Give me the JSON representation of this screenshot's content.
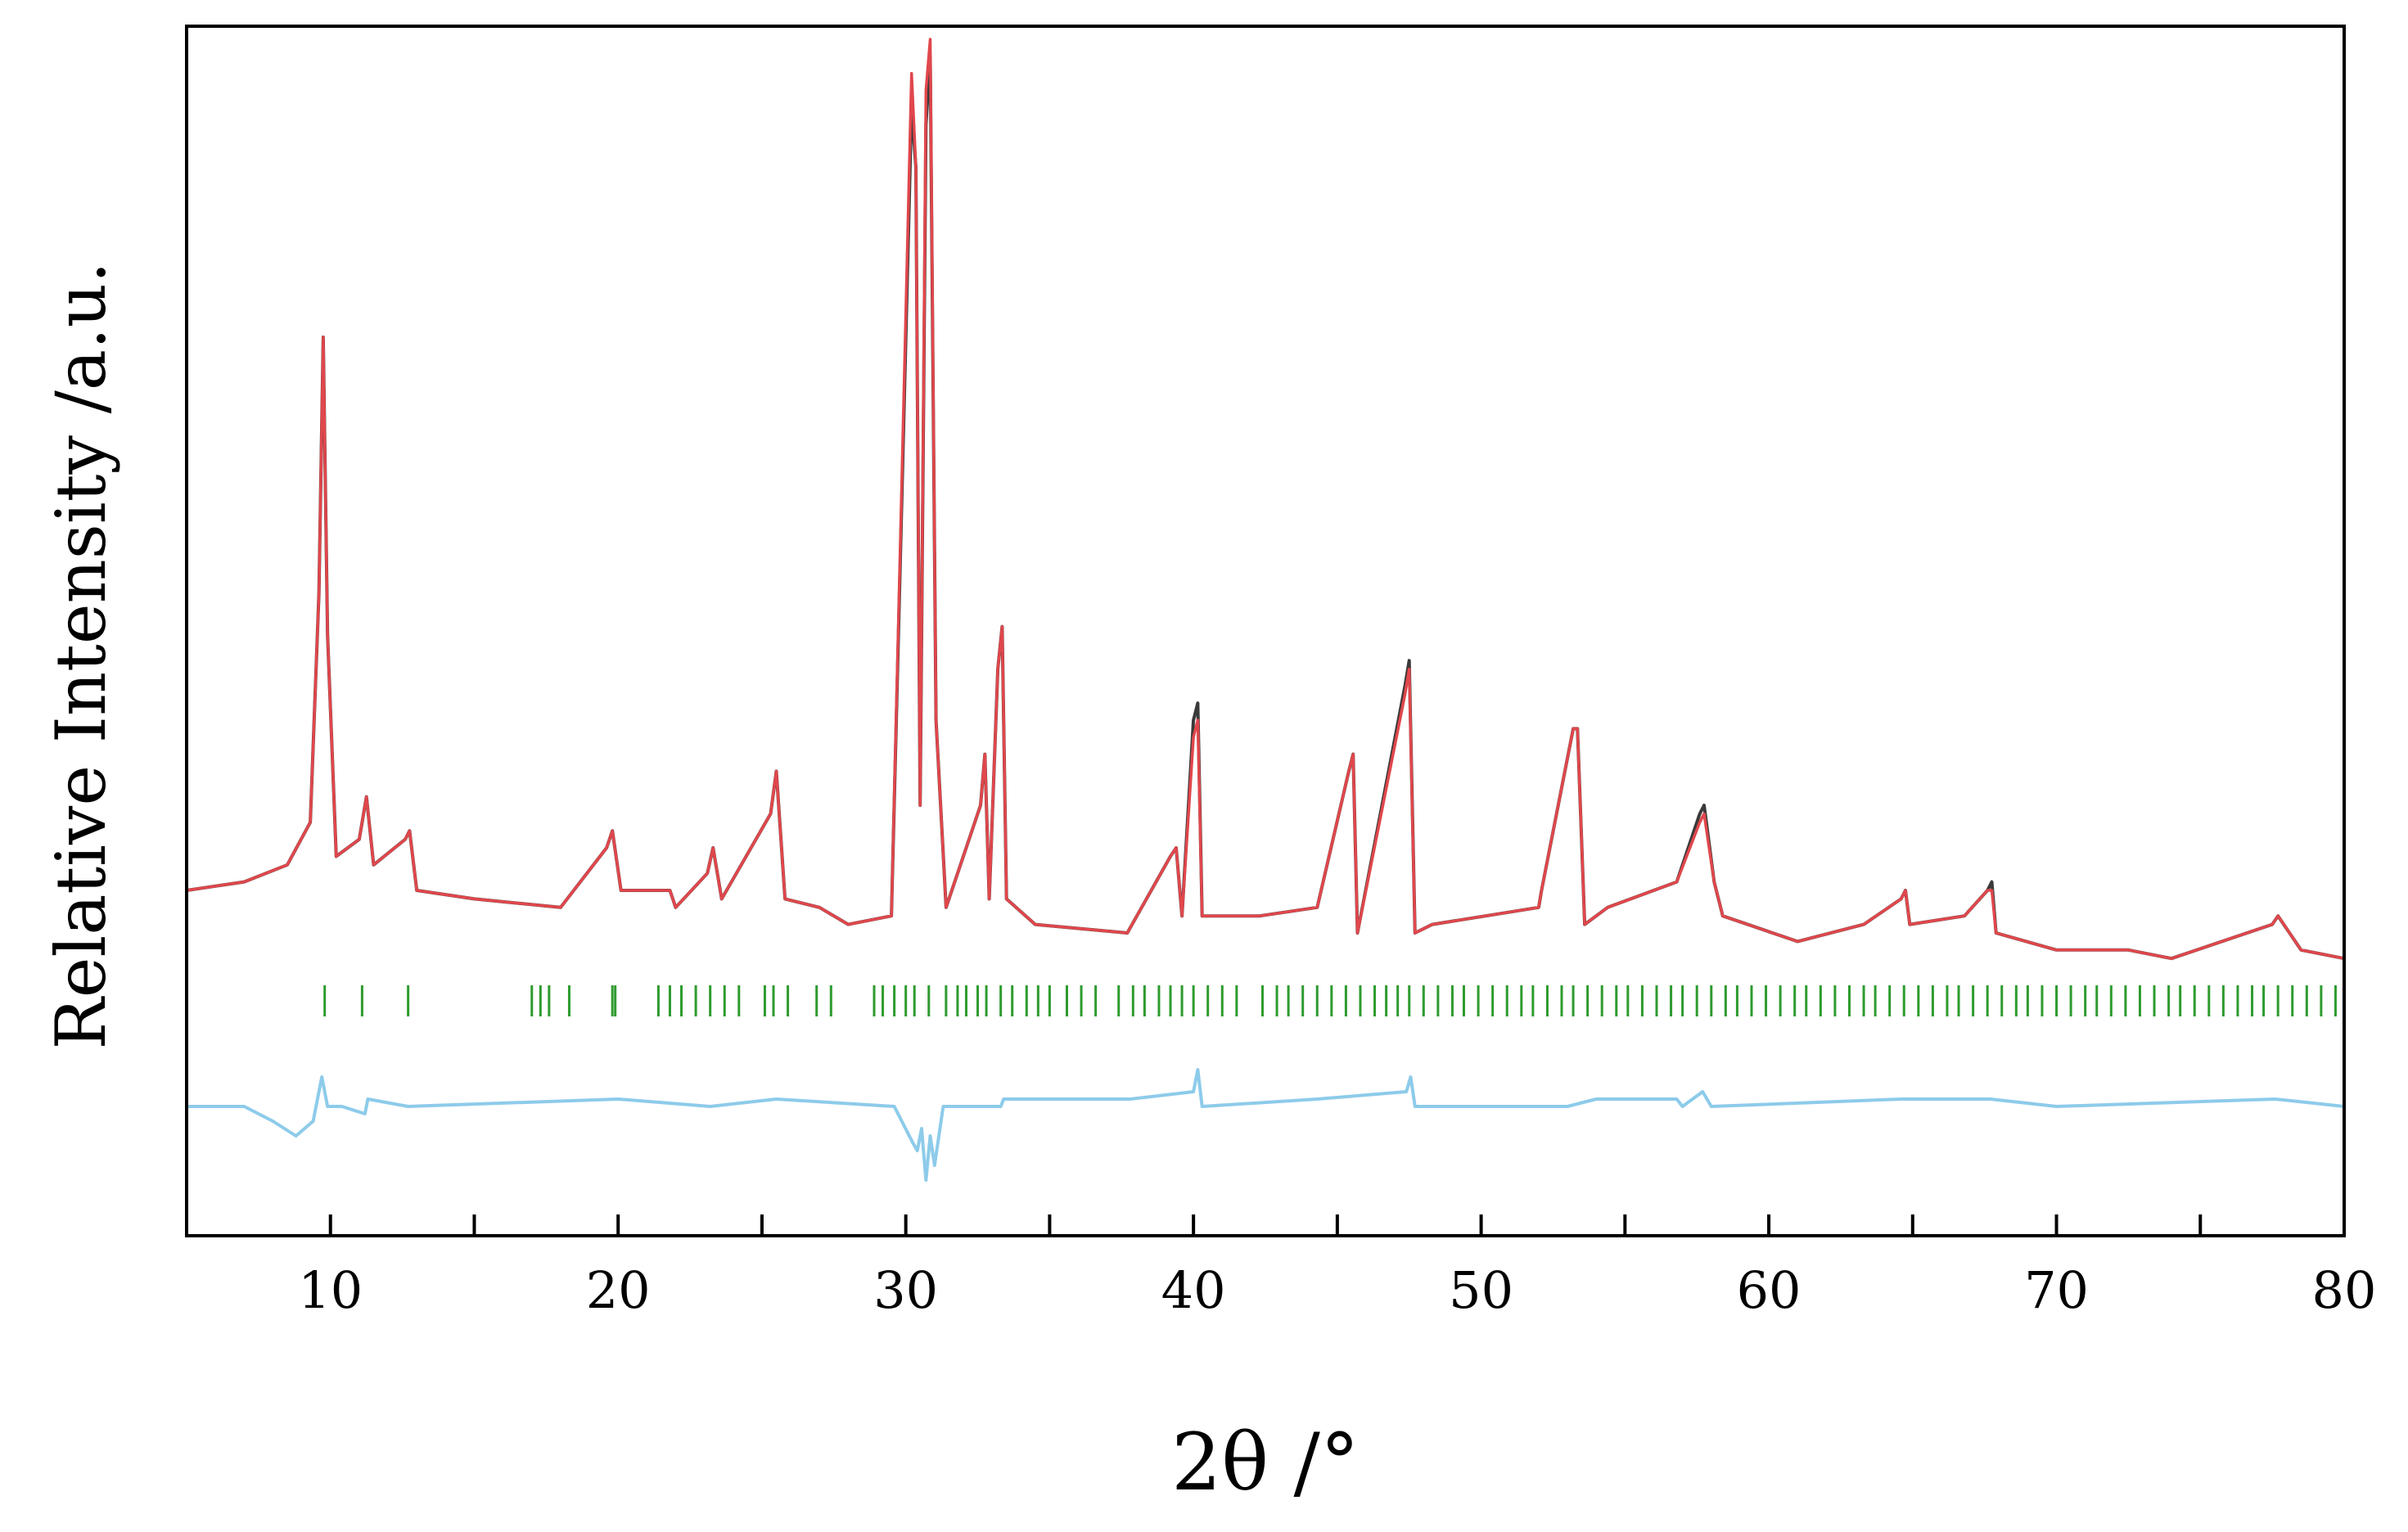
{
  "chart_data": {
    "type": "line",
    "title": "",
    "xlabel": "2θ /°",
    "ylabel": "Relative Intensity /a.u.",
    "xlim": [
      5,
      80
    ],
    "x_ticks": [
      10,
      20,
      30,
      40,
      50,
      60,
      70,
      80
    ],
    "x_tick_labels": [
      "10",
      "20",
      "30",
      "40",
      "50",
      "60",
      "70",
      "80"
    ],
    "y_ticks_shown": false,
    "grid": false,
    "legend": "none",
    "y_scale_note": "Relative intensity, baseline normalized to 0 (pattern), peak max ≈ 1.0",
    "colors": {
      "observed": "#3a3a3a",
      "calculated": "#e0474c",
      "reflection_ticks": "#2e9b2e",
      "difference": "#8dcbea",
      "axis": "#000000"
    },
    "series": [
      {
        "role": "observed",
        "x": [
          5,
          7,
          8.5,
          9.3,
          9.6,
          9.75,
          9.9,
          10.2,
          11.0,
          11.25,
          11.5,
          12.6,
          12.75,
          13.0,
          15,
          18,
          19.6,
          19.8,
          20.1,
          21.8,
          22.0,
          23.1,
          23.3,
          23.6,
          25.3,
          25.5,
          25.8,
          27.0,
          28,
          29.5,
          30.2,
          30.35,
          30.5,
          30.7,
          30.85,
          31.05,
          31.4,
          32.6,
          32.75,
          32.9,
          33.2,
          33.35,
          33.5,
          34.5,
          37.7,
          39.2,
          39.4,
          39.6,
          40.0,
          40.15,
          40.3,
          42.3,
          44.3,
          45.4,
          45.55,
          45.7,
          47.35,
          47.5,
          47.7,
          48.3,
          52.0,
          52.1,
          53.2,
          53.35,
          53.6,
          54.4,
          56.8,
          57.6,
          57.75,
          58.1,
          58.4,
          61.0,
          63.3,
          64.6,
          64.75,
          64.9,
          66.8,
          67.6,
          67.75,
          67.9,
          70.0,
          72.5,
          74.0,
          77.5,
          77.7,
          78.5,
          80
        ],
        "y": [
          0.0,
          0.01,
          0.03,
          0.08,
          0.35,
          0.65,
          0.3,
          0.04,
          0.06,
          0.11,
          0.03,
          0.06,
          0.07,
          0.0,
          -0.01,
          -0.02,
          0.05,
          0.07,
          0.0,
          0.0,
          -0.02,
          0.02,
          0.05,
          -0.01,
          0.09,
          0.14,
          -0.01,
          -0.02,
          -0.04,
          -0.03,
          0.92,
          0.85,
          0.1,
          0.9,
          0.98,
          0.2,
          -0.02,
          0.1,
          0.16,
          -0.01,
          0.26,
          0.31,
          -0.01,
          -0.04,
          -0.05,
          0.04,
          0.05,
          -0.03,
          0.2,
          0.22,
          -0.03,
          -0.03,
          -0.02,
          0.14,
          0.16,
          -0.05,
          0.24,
          0.27,
          -0.05,
          -0.04,
          -0.02,
          0.0,
          0.19,
          0.19,
          -0.04,
          -0.02,
          0.01,
          0.09,
          0.1,
          0.01,
          -0.03,
          -0.06,
          -0.04,
          -0.01,
          0.0,
          -0.04,
          -0.03,
          0.0,
          0.01,
          -0.05,
          -0.07,
          -0.07,
          -0.08,
          -0.04,
          -0.03,
          -0.07,
          -0.08
        ]
      },
      {
        "role": "calculated",
        "x": [
          5,
          7,
          8.5,
          9.3,
          9.6,
          9.75,
          9.9,
          10.2,
          11.0,
          11.25,
          11.5,
          12.6,
          12.75,
          13.0,
          15,
          18,
          19.6,
          19.8,
          20.1,
          21.8,
          22.0,
          23.1,
          23.3,
          23.6,
          25.3,
          25.5,
          25.8,
          27.0,
          28,
          29.5,
          30.2,
          30.35,
          30.5,
          30.7,
          30.85,
          31.05,
          31.4,
          32.6,
          32.75,
          32.9,
          33.2,
          33.35,
          33.5,
          34.5,
          37.7,
          39.2,
          39.4,
          39.6,
          40.0,
          40.15,
          40.3,
          42.3,
          44.3,
          45.4,
          45.55,
          45.7,
          47.35,
          47.5,
          47.7,
          48.3,
          52.0,
          52.1,
          53.2,
          53.35,
          53.6,
          54.4,
          56.8,
          57.6,
          57.75,
          58.1,
          58.4,
          61.0,
          63.3,
          64.6,
          64.75,
          64.9,
          66.8,
          67.6,
          67.75,
          67.9,
          70.0,
          72.5,
          74.0,
          77.5,
          77.7,
          78.5,
          80
        ],
        "y": [
          0.0,
          0.01,
          0.03,
          0.08,
          0.35,
          0.65,
          0.3,
          0.04,
          0.06,
          0.11,
          0.03,
          0.06,
          0.07,
          0.0,
          -0.01,
          -0.02,
          0.05,
          0.07,
          0.0,
          0.0,
          -0.02,
          0.02,
          0.05,
          -0.01,
          0.09,
          0.14,
          -0.01,
          -0.02,
          -0.04,
          -0.03,
          0.96,
          0.85,
          0.1,
          0.94,
          1.0,
          0.2,
          -0.02,
          0.1,
          0.16,
          -0.01,
          0.26,
          0.31,
          -0.01,
          -0.04,
          -0.05,
          0.04,
          0.05,
          -0.03,
          0.18,
          0.2,
          -0.03,
          -0.03,
          -0.02,
          0.14,
          0.16,
          -0.05,
          0.23,
          0.26,
          -0.05,
          -0.04,
          -0.02,
          0.0,
          0.19,
          0.19,
          -0.04,
          -0.02,
          0.01,
          0.08,
          0.09,
          0.01,
          -0.03,
          -0.06,
          -0.04,
          -0.01,
          0.0,
          -0.04,
          -0.03,
          0.0,
          0.0,
          -0.05,
          -0.07,
          -0.07,
          -0.08,
          -0.04,
          -0.03,
          -0.07,
          -0.08
        ]
      },
      {
        "role": "difference",
        "x": [
          5,
          7.0,
          8.0,
          8.8,
          9.4,
          9.7,
          9.9,
          10.4,
          11.2,
          11.3,
          12.7,
          20.0,
          23.2,
          25.5,
          29.6,
          30.25,
          30.4,
          30.55,
          30.7,
          30.85,
          31.0,
          31.3,
          33.3,
          33.4,
          37.8,
          40.0,
          40.15,
          40.3,
          44.3,
          47.4,
          47.55,
          47.7,
          53.0,
          54.0,
          56.8,
          57.0,
          57.7,
          58.0,
          64.6,
          67.0,
          67.7,
          70.0,
          77.6,
          80
        ],
        "y": [
          0.0,
          0.0,
          -0.02,
          -0.04,
          -0.02,
          0.04,
          0.0,
          0.0,
          -0.01,
          0.01,
          0.0,
          0.01,
          0.0,
          0.01,
          0.0,
          -0.05,
          -0.06,
          -0.03,
          -0.1,
          -0.04,
          -0.08,
          0.0,
          0.0,
          0.01,
          0.01,
          0.02,
          0.05,
          0.0,
          0.01,
          0.02,
          0.04,
          0.0,
          0.0,
          0.01,
          0.01,
          0.0,
          0.02,
          0.0,
          0.01,
          0.01,
          0.01,
          0.0,
          0.01,
          0.0
        ]
      }
    ],
    "reflection_ticks": {
      "x": [
        9.8,
        11.1,
        12.7,
        17.0,
        17.3,
        17.6,
        18.3,
        19.8,
        19.9,
        21.4,
        21.8,
        22.2,
        22.7,
        23.2,
        23.7,
        24.2,
        25.1,
        25.4,
        25.9,
        26.9,
        27.4,
        28.9,
        29.2,
        29.6,
        30.0,
        30.3,
        30.8,
        31.4,
        31.8,
        32.1,
        32.5,
        32.8,
        33.3,
        33.7,
        34.2,
        34.6,
        35.0,
        35.6,
        36.1,
        36.6,
        37.4,
        37.9,
        38.3,
        38.8,
        39.2,
        39.6,
        40.0,
        40.5,
        41.0,
        41.5,
        42.4,
        42.9,
        43.3,
        43.8,
        44.3,
        44.8,
        45.3,
        45.8,
        46.3,
        46.7,
        47.1,
        47.5,
        48.0,
        48.5,
        49.0,
        49.4,
        49.9,
        50.4,
        50.9,
        51.4,
        51.8,
        52.3,
        52.8,
        53.2,
        53.7,
        54.2,
        54.7,
        55.1,
        55.6,
        56.1,
        56.6,
        57.0,
        57.5,
        58.0,
        58.5,
        58.9,
        59.4,
        59.9,
        60.4,
        60.9,
        61.3,
        61.8,
        62.3,
        62.8,
        63.3,
        63.7,
        64.2,
        64.7,
        65.2,
        65.7,
        66.2,
        66.6,
        67.1,
        67.6,
        68.1,
        68.6,
        69.0,
        69.5,
        70.0,
        70.5,
        71.0,
        71.4,
        71.9,
        72.4,
        72.9,
        73.4,
        73.9,
        74.3,
        74.8,
        75.3,
        75.8,
        76.3,
        76.8,
        77.2,
        77.7,
        78.2,
        78.7,
        79.2,
        79.7
      ]
    }
  }
}
